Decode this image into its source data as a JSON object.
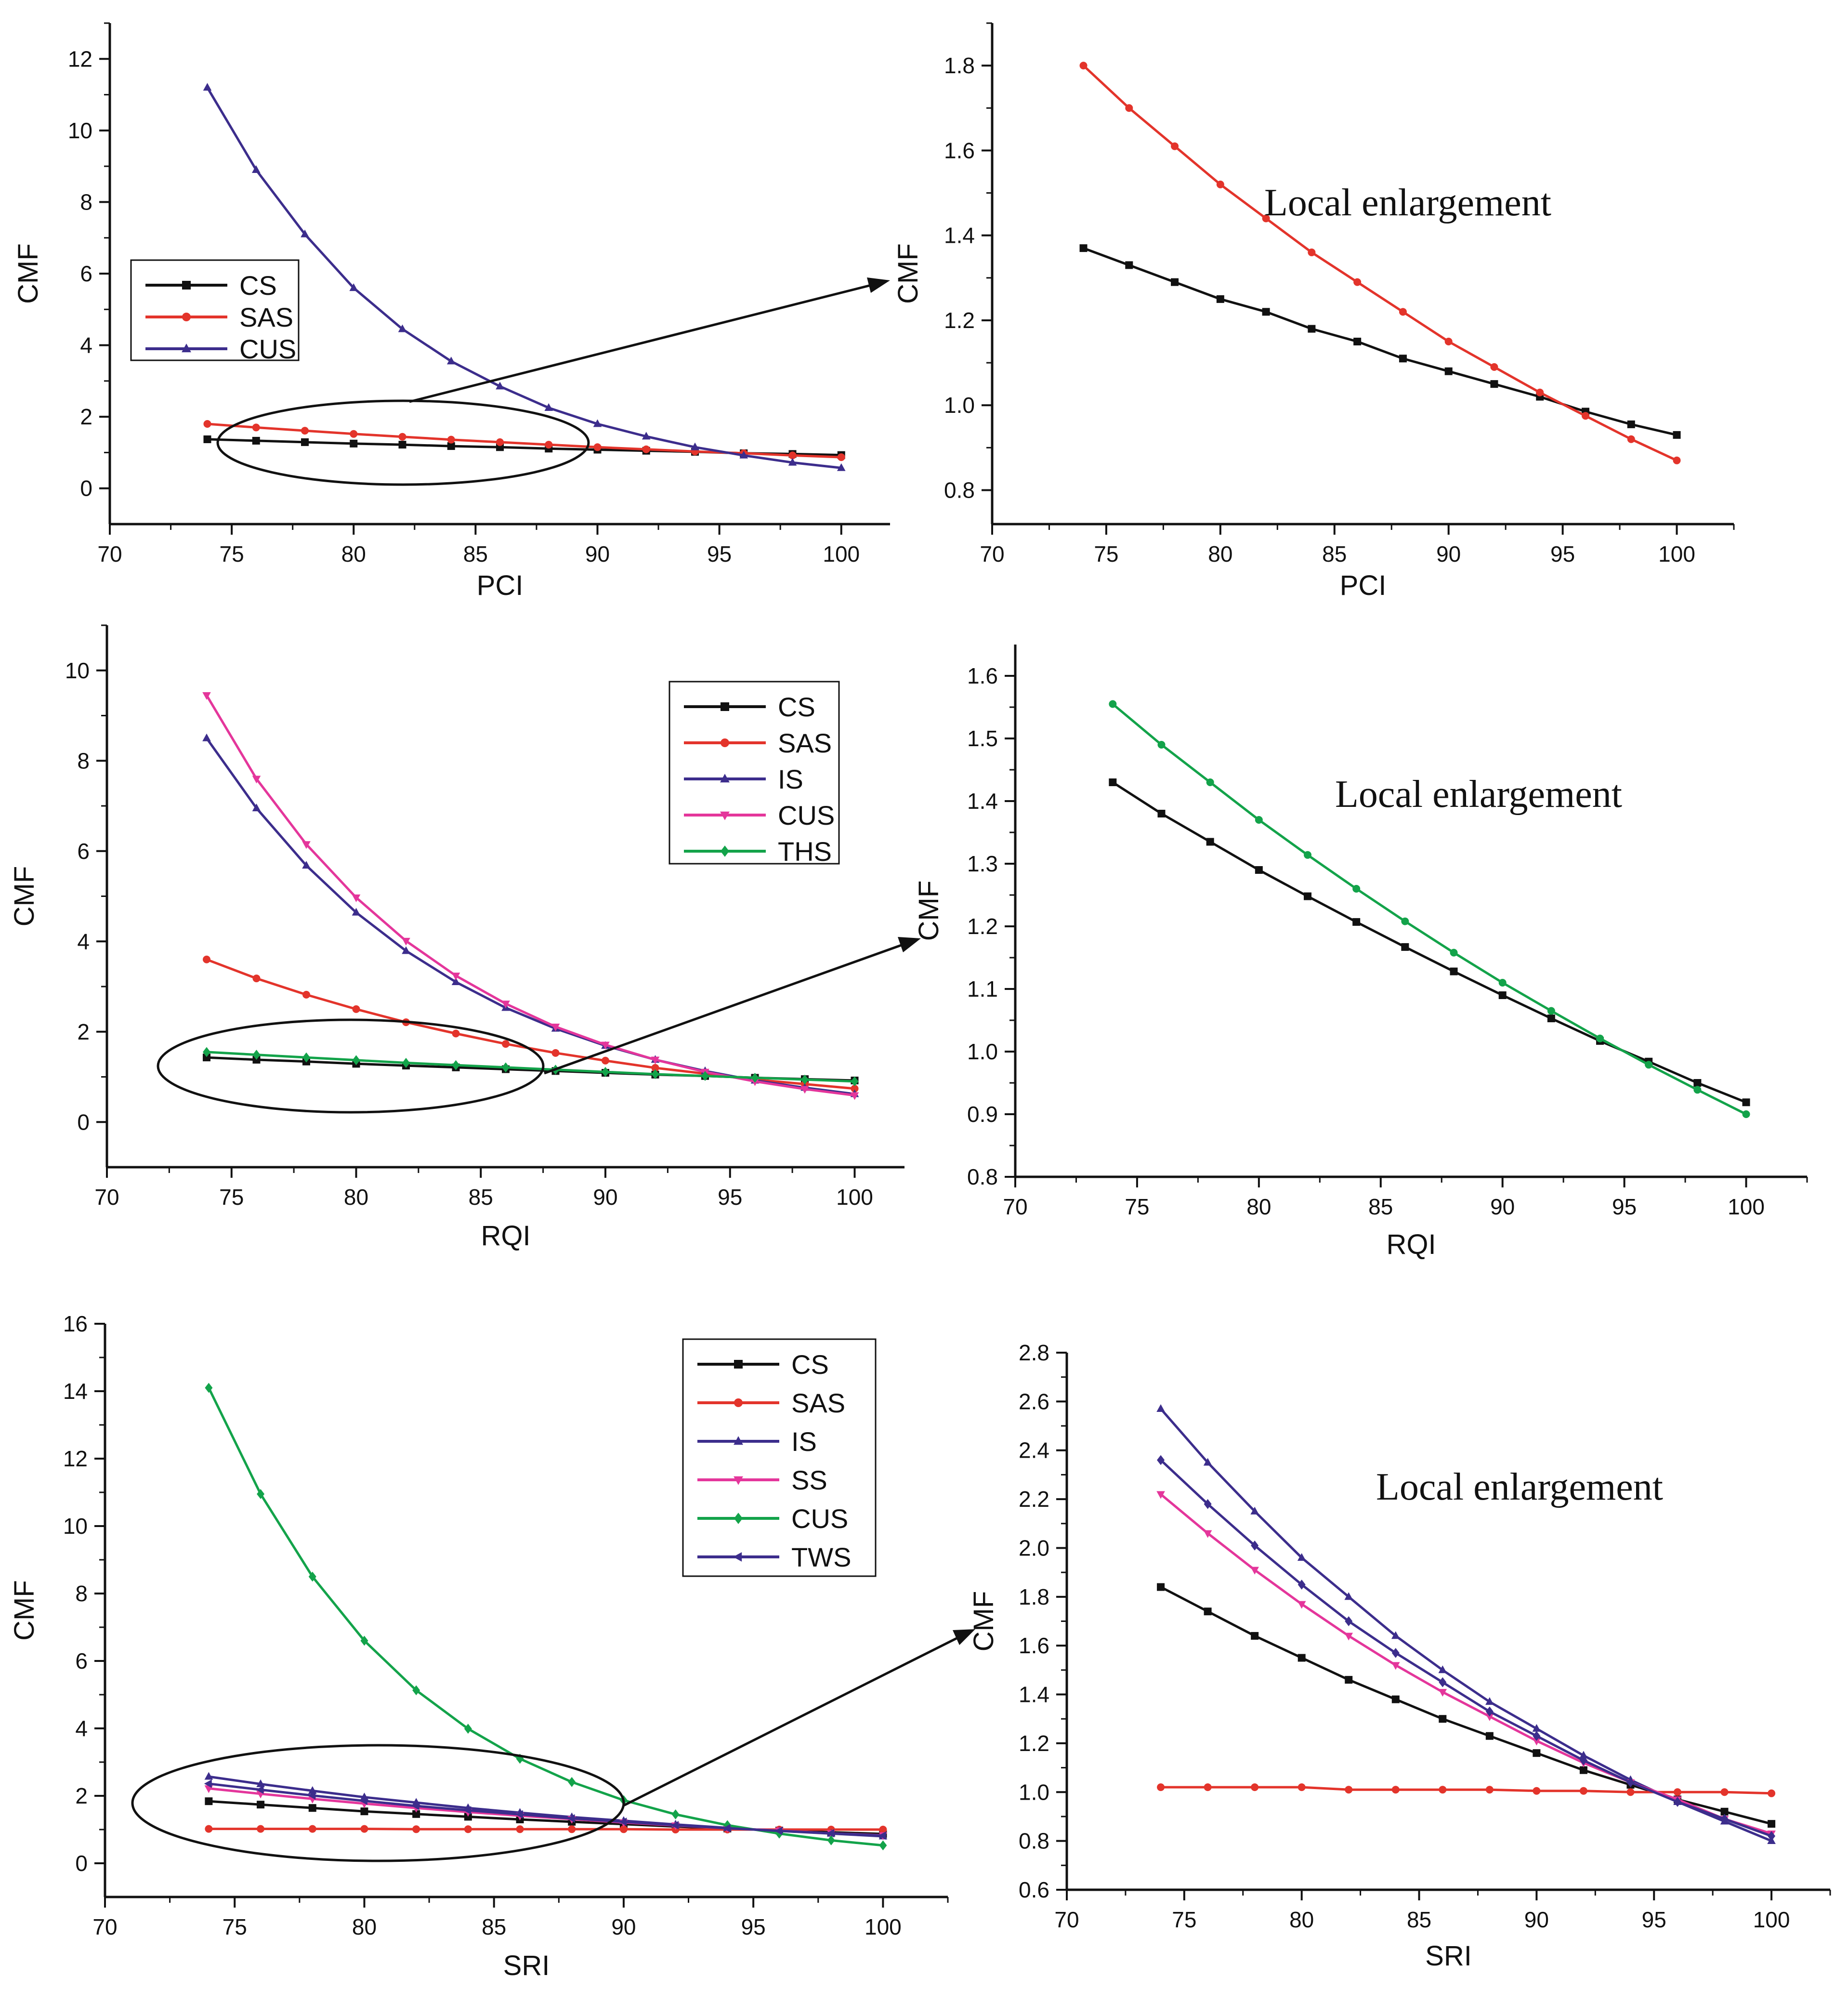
{
  "colors": {
    "CS": "#111111",
    "SAS": "#e3342b",
    "IS": "#3c2d8c",
    "CUS": "#e4369b",
    "THS": "#13a34a",
    "SS": "#e4369b",
    "TWS": "#3c2d8c",
    "CUS_pci": "#3c2d8c",
    "CUS_sri": "#13a34a"
  },
  "annotation": "Local enlargement",
  "chart_data": [
    {
      "id": "pci-full",
      "type": "line",
      "xlabel": "PCI",
      "ylabel": "CMF",
      "xlim": [
        70,
        102
      ],
      "ylim": [
        -1,
        13
      ],
      "xticks": [
        70,
        75,
        80,
        85,
        90,
        95,
        100
      ],
      "yticks": [
        0,
        2,
        4,
        6,
        8,
        10,
        12
      ],
      "x": [
        74,
        76,
        78,
        80,
        82,
        84,
        86,
        88,
        90,
        92,
        94,
        96,
        98,
        100
      ],
      "legend": [
        "CS",
        "SAS",
        "CUS"
      ],
      "series": [
        {
          "name": "CS",
          "color_key": "CS",
          "marker": "square",
          "values": [
            1.37,
            1.33,
            1.29,
            1.25,
            1.22,
            1.18,
            1.15,
            1.11,
            1.08,
            1.05,
            1.02,
            0.98,
            0.96,
            0.93
          ]
        },
        {
          "name": "SAS",
          "color_key": "SAS",
          "marker": "circle",
          "values": [
            1.8,
            1.7,
            1.61,
            1.52,
            1.44,
            1.36,
            1.29,
            1.22,
            1.15,
            1.09,
            1.03,
            0.98,
            0.92,
            0.87
          ]
        },
        {
          "name": "CUS",
          "color_key": "CUS_pci",
          "marker": "triangle-up",
          "values": [
            11.2,
            8.9,
            7.1,
            5.6,
            4.45,
            3.55,
            2.85,
            2.25,
            1.8,
            1.45,
            1.15,
            0.92,
            0.72,
            0.57
          ]
        }
      ]
    },
    {
      "id": "pci-zoom",
      "type": "line",
      "xlabel": "PCI",
      "ylabel": "CMF",
      "xlim": [
        70,
        102.5
      ],
      "ylim": [
        0.72,
        1.9
      ],
      "xticks": [
        70,
        75,
        80,
        85,
        90,
        95,
        100
      ],
      "yticks": [
        0.8,
        1.0,
        1.2,
        1.4,
        1.6,
        1.8
      ],
      "tick_format": 1,
      "x": [
        74,
        76,
        78,
        80,
        82,
        84,
        86,
        88,
        90,
        92,
        94,
        96,
        98,
        100
      ],
      "series": [
        {
          "name": "CS",
          "color_key": "CS",
          "marker": "square",
          "values": [
            1.37,
            1.33,
            1.29,
            1.25,
            1.22,
            1.18,
            1.15,
            1.11,
            1.08,
            1.05,
            1.02,
            0.985,
            0.955,
            0.93
          ]
        },
        {
          "name": "SAS",
          "color_key": "SAS",
          "marker": "circle",
          "values": [
            1.8,
            1.7,
            1.61,
            1.52,
            1.44,
            1.36,
            1.29,
            1.22,
            1.15,
            1.09,
            1.03,
            0.975,
            0.92,
            0.87
          ]
        }
      ]
    },
    {
      "id": "rqi-full",
      "type": "line",
      "xlabel": "RQI",
      "ylabel": "CMF",
      "xlim": [
        70,
        102
      ],
      "ylim": [
        -1,
        11
      ],
      "xticks": [
        70,
        75,
        80,
        85,
        90,
        95,
        100
      ],
      "yticks": [
        0,
        2,
        4,
        6,
        8,
        10
      ],
      "x": [
        74,
        76,
        78,
        80,
        82,
        84,
        86,
        88,
        90,
        92,
        94,
        96,
        98,
        100
      ],
      "legend": [
        "CS",
        "SAS",
        "IS",
        "CUS",
        "THS"
      ],
      "series": [
        {
          "name": "CS",
          "color_key": "CS",
          "marker": "square",
          "values": [
            1.43,
            1.38,
            1.34,
            1.29,
            1.25,
            1.21,
            1.17,
            1.13,
            1.09,
            1.05,
            1.02,
            0.98,
            0.95,
            0.92
          ]
        },
        {
          "name": "SAS",
          "color_key": "SAS",
          "marker": "circle",
          "values": [
            3.6,
            3.18,
            2.82,
            2.5,
            2.21,
            1.96,
            1.73,
            1.53,
            1.36,
            1.2,
            1.07,
            0.94,
            0.84,
            0.74
          ]
        },
        {
          "name": "IS",
          "color_key": "IS",
          "marker": "triangle-up",
          "values": [
            8.5,
            6.95,
            5.68,
            4.64,
            3.79,
            3.1,
            2.53,
            2.07,
            1.69,
            1.38,
            1.13,
            0.92,
            0.76,
            0.62
          ]
        },
        {
          "name": "CUS",
          "color_key": "CUS",
          "marker": "triangle-down",
          "values": [
            9.45,
            7.6,
            6.15,
            4.97,
            4.01,
            3.24,
            2.62,
            2.11,
            1.71,
            1.38,
            1.11,
            0.9,
            0.73,
            0.59
          ]
        },
        {
          "name": "THS",
          "color_key": "THS",
          "marker": "diamond",
          "values": [
            1.55,
            1.49,
            1.43,
            1.37,
            1.31,
            1.26,
            1.21,
            1.16,
            1.11,
            1.06,
            1.02,
            0.98,
            0.94,
            0.9
          ]
        }
      ]
    },
    {
      "id": "rqi-zoom",
      "type": "line",
      "xlabel": "RQI",
      "ylabel": "CMF",
      "xlim": [
        70,
        102.5
      ],
      "ylim": [
        0.8,
        1.65
      ],
      "xticks": [
        70,
        75,
        80,
        85,
        90,
        95,
        100
      ],
      "yticks": [
        0.8,
        0.9,
        1.0,
        1.1,
        1.2,
        1.3,
        1.4,
        1.5,
        1.6
      ],
      "tick_format": 1,
      "x": [
        74,
        76,
        78,
        80,
        82,
        84,
        86,
        88,
        90,
        92,
        94,
        96,
        98,
        100
      ],
      "series": [
        {
          "name": "CS",
          "color_key": "CS",
          "marker": "square",
          "values": [
            1.43,
            1.38,
            1.335,
            1.29,
            1.248,
            1.207,
            1.167,
            1.128,
            1.09,
            1.053,
            1.017,
            0.984,
            0.95,
            0.919
          ]
        },
        {
          "name": "THS",
          "color_key": "THS",
          "marker": "circle",
          "values": [
            1.555,
            1.49,
            1.43,
            1.37,
            1.314,
            1.26,
            1.208,
            1.158,
            1.11,
            1.065,
            1.021,
            0.979,
            0.939,
            0.9
          ]
        }
      ]
    },
    {
      "id": "sri-full",
      "type": "line",
      "xlabel": "SRI",
      "ylabel": "CMF",
      "xlim": [
        70,
        102.5
      ],
      "ylim": [
        -1,
        16
      ],
      "xticks": [
        70,
        75,
        80,
        85,
        90,
        95,
        100
      ],
      "yticks": [
        0,
        2,
        4,
        6,
        8,
        10,
        12,
        14,
        16
      ],
      "x": [
        74,
        76,
        78,
        80,
        82,
        84,
        86,
        88,
        90,
        92,
        94,
        96,
        98,
        100
      ],
      "legend": [
        "CS",
        "SAS",
        "IS",
        "SS",
        "CUS",
        "TWS"
      ],
      "series": [
        {
          "name": "CS",
          "color_key": "CS",
          "marker": "square",
          "values": [
            1.84,
            1.74,
            1.64,
            1.54,
            1.46,
            1.38,
            1.3,
            1.23,
            1.16,
            1.09,
            1.03,
            0.97,
            0.92,
            0.87
          ]
        },
        {
          "name": "SAS",
          "color_key": "SAS",
          "marker": "circle",
          "values": [
            1.02,
            1.02,
            1.02,
            1.02,
            1.01,
            1.01,
            1.01,
            1.01,
            1.01,
            1.0,
            1.0,
            1.0,
            1.0,
            1.0
          ]
        },
        {
          "name": "IS",
          "color_key": "IS",
          "marker": "triangle-up",
          "values": [
            2.57,
            2.35,
            2.15,
            1.96,
            1.8,
            1.64,
            1.5,
            1.37,
            1.26,
            1.15,
            1.05,
            0.96,
            0.88,
            0.8
          ]
        },
        {
          "name": "SS",
          "color_key": "SS",
          "marker": "triangle-down",
          "values": [
            2.22,
            2.06,
            1.91,
            1.77,
            1.64,
            1.52,
            1.41,
            1.31,
            1.21,
            1.12,
            1.04,
            0.97,
            0.89,
            0.83
          ]
        },
        {
          "name": "CUS",
          "color_key": "CUS_sri",
          "marker": "diamond",
          "values": [
            14.1,
            10.95,
            8.5,
            6.6,
            5.13,
            3.99,
            3.1,
            2.41,
            1.87,
            1.45,
            1.13,
            0.88,
            0.68,
            0.53
          ]
        },
        {
          "name": "TWS",
          "color_key": "TWS",
          "marker": "triangle-left",
          "values": [
            2.36,
            2.18,
            2.01,
            1.85,
            1.7,
            1.57,
            1.45,
            1.33,
            1.23,
            1.13,
            1.04,
            0.96,
            0.89,
            0.82
          ]
        }
      ]
    },
    {
      "id": "sri-zoom",
      "type": "line",
      "xlabel": "SRI",
      "ylabel": "CMF",
      "xlim": [
        70,
        102.5
      ],
      "ylim": [
        0.6,
        2.8
      ],
      "xticks": [
        70,
        75,
        80,
        85,
        90,
        95,
        100
      ],
      "yticks": [
        0.6,
        0.8,
        1.0,
        1.2,
        1.4,
        1.6,
        1.8,
        2.0,
        2.2,
        2.4,
        2.6,
        2.8
      ],
      "tick_format": 1,
      "x": [
        74,
        76,
        78,
        80,
        82,
        84,
        86,
        88,
        90,
        92,
        94,
        96,
        98,
        100
      ],
      "series": [
        {
          "name": "CS",
          "color_key": "CS",
          "marker": "square",
          "values": [
            1.84,
            1.74,
            1.64,
            1.55,
            1.46,
            1.38,
            1.3,
            1.23,
            1.16,
            1.09,
            1.03,
            0.97,
            0.92,
            0.87
          ]
        },
        {
          "name": "SAS",
          "color_key": "SAS",
          "marker": "circle",
          "values": [
            1.02,
            1.02,
            1.02,
            1.02,
            1.01,
            1.01,
            1.01,
            1.01,
            1.005,
            1.005,
            1.0,
            1.0,
            1.0,
            0.995
          ]
        },
        {
          "name": "IS",
          "color_key": "IS",
          "marker": "triangle-up",
          "values": [
            2.57,
            2.35,
            2.15,
            1.96,
            1.8,
            1.64,
            1.5,
            1.37,
            1.26,
            1.15,
            1.05,
            0.96,
            0.88,
            0.8
          ]
        },
        {
          "name": "SS",
          "color_key": "SS",
          "marker": "triangle-down",
          "values": [
            2.22,
            2.06,
            1.91,
            1.77,
            1.64,
            1.52,
            1.41,
            1.31,
            1.21,
            1.12,
            1.04,
            0.97,
            0.89,
            0.83
          ]
        },
        {
          "name": "TWS",
          "color_key": "TWS",
          "marker": "diamond",
          "values": [
            2.36,
            2.18,
            2.01,
            1.85,
            1.7,
            1.57,
            1.45,
            1.33,
            1.23,
            1.13,
            1.04,
            0.96,
            0.89,
            0.82
          ]
        }
      ]
    }
  ]
}
